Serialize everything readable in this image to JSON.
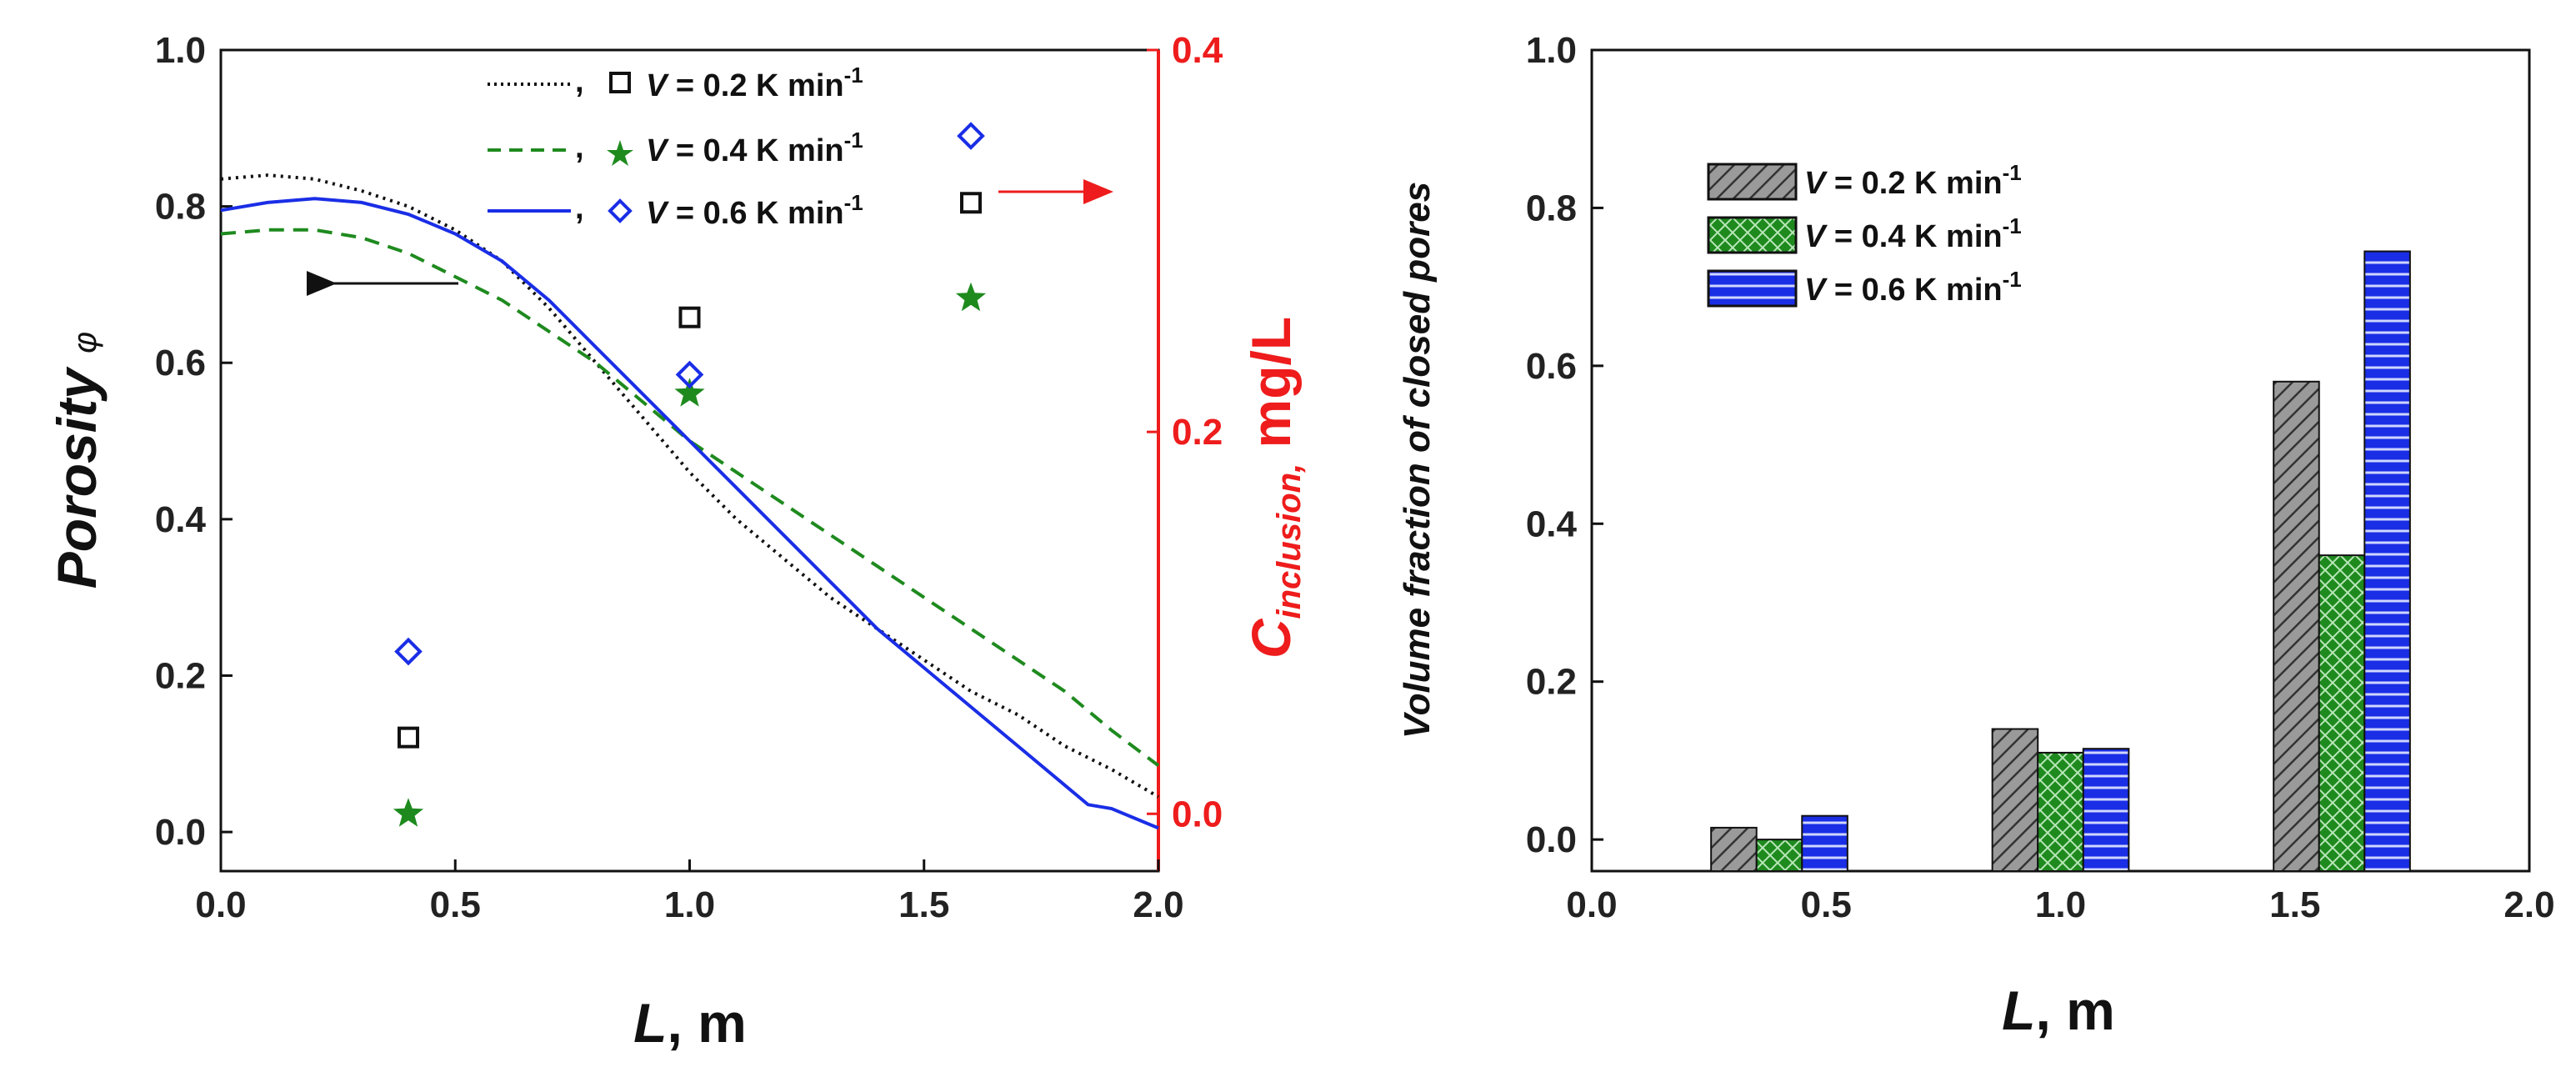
{
  "colors": {
    "black": "#111111",
    "green": "#1e8a1e",
    "blue": "#1a2ee6",
    "red": "#ee1c1c",
    "grey": "#7a7a7a"
  },
  "chart_data": [
    {
      "id": "left",
      "type": "line",
      "title": "",
      "xlabel": {
        "italic": "L",
        "rest": ", m"
      },
      "ylabel": {
        "italic": "Porosity ",
        "symbol": "φ"
      },
      "ylabel_right": {
        "base": "C",
        "sub": "inclusion,",
        "rest": " mg/L"
      },
      "xlim": [
        0.0,
        2.0
      ],
      "ylim": [
        -0.05,
        1.0
      ],
      "ylim_right": [
        -0.03,
        0.4
      ],
      "xticks": [
        "0.0",
        "0.5",
        "1.0",
        "1.5",
        "2.0"
      ],
      "yticks": [
        "0.0",
        "0.2",
        "0.4",
        "0.6",
        "0.8",
        "1.0"
      ],
      "yticks_right": [
        "0.0",
        "0.2",
        "0.4"
      ],
      "legend": [
        {
          "name": "V",
          "label": " = 0.2 K min",
          "sup": "-1",
          "line": "dotted",
          "marker": "square"
        },
        {
          "name": "V",
          "label": " = 0.4 K min",
          "sup": "-1",
          "line": "dashed",
          "marker": "star"
        },
        {
          "name": "V",
          "label": " = 0.6 K min",
          "sup": "-1",
          "line": "solid",
          "marker": "diamond"
        }
      ],
      "legend_separator": ",",
      "series": [
        {
          "name": "V = 0.2 K min-1",
          "line_style": "dotted",
          "marker": "square",
          "x": [
            0.0,
            0.1,
            0.2,
            0.3,
            0.4,
            0.5,
            0.6,
            0.7,
            0.8,
            0.9,
            1.0,
            1.1,
            1.2,
            1.3,
            1.4,
            1.5,
            1.6,
            1.7,
            1.8,
            1.9,
            2.0
          ],
          "y": [
            0.835,
            0.84,
            0.835,
            0.82,
            0.8,
            0.77,
            0.73,
            0.67,
            0.6,
            0.53,
            0.46,
            0.4,
            0.35,
            0.3,
            0.26,
            0.22,
            0.18,
            0.15,
            0.11,
            0.08,
            0.045
          ],
          "markers_x": [
            0.4,
            1.0,
            1.6
          ],
          "markers_c": [
            0.04,
            0.26,
            0.32
          ]
        },
        {
          "name": "V = 0.4 K min-1",
          "line_style": "dashed",
          "marker": "star",
          "x": [
            0.0,
            0.1,
            0.2,
            0.3,
            0.4,
            0.5,
            0.6,
            0.7,
            0.8,
            0.9,
            1.0,
            1.1,
            1.2,
            1.3,
            1.4,
            1.5,
            1.6,
            1.7,
            1.8,
            1.9,
            2.0
          ],
          "y": [
            0.765,
            0.77,
            0.77,
            0.76,
            0.74,
            0.71,
            0.68,
            0.64,
            0.6,
            0.55,
            0.5,
            0.46,
            0.42,
            0.38,
            0.34,
            0.3,
            0.26,
            0.22,
            0.18,
            0.13,
            0.085
          ],
          "markers_x": [
            0.4,
            1.0,
            1.6
          ],
          "markers_c": [
            0.0,
            0.22,
            0.27
          ]
        },
        {
          "name": "V = 0.6 K min-1",
          "line_style": "solid",
          "marker": "diamond",
          "x": [
            0.0,
            0.1,
            0.2,
            0.3,
            0.4,
            0.5,
            0.6,
            0.7,
            0.8,
            0.9,
            1.0,
            1.1,
            1.2,
            1.3,
            1.4,
            1.5,
            1.6,
            1.7,
            1.8,
            1.85,
            1.9,
            2.0
          ],
          "y": [
            0.795,
            0.805,
            0.81,
            0.805,
            0.79,
            0.765,
            0.73,
            0.68,
            0.62,
            0.56,
            0.5,
            0.44,
            0.38,
            0.32,
            0.26,
            0.21,
            0.16,
            0.11,
            0.06,
            0.035,
            0.03,
            0.005
          ],
          "markers_x": [
            0.4,
            1.0,
            1.6
          ],
          "markers_c": [
            0.085,
            0.23,
            0.355
          ]
        }
      ],
      "annotations": [
        {
          "type": "arrow",
          "direction": "left",
          "target_axis": "left"
        },
        {
          "type": "arrow",
          "direction": "right",
          "target_axis": "right"
        }
      ]
    },
    {
      "id": "right",
      "type": "bar",
      "title": "",
      "xlabel": {
        "italic": "L",
        "rest": ", m"
      },
      "ylabel": "Volume fraction of closed pores",
      "xlim": [
        0.0,
        2.0
      ],
      "ylim": [
        -0.04,
        1.0
      ],
      "xticks": [
        "0.0",
        "0.5",
        "1.0",
        "1.5",
        "2.0"
      ],
      "yticks": [
        "0.0",
        "0.2",
        "0.4",
        "0.6",
        "0.8",
        "1.0"
      ],
      "categories": [
        0.4,
        1.0,
        1.6
      ],
      "bar_width": 0.097,
      "legend": [
        {
          "name": "V",
          "label": " = 0.2 K min",
          "sup": "-1",
          "pattern": "diagonal"
        },
        {
          "name": "V",
          "label": " = 0.4 K min",
          "sup": "-1",
          "pattern": "crosshatch"
        },
        {
          "name": "V",
          "label": " = 0.6 K min",
          "sup": "-1",
          "pattern": "horizontal"
        }
      ],
      "series": [
        {
          "name": "V = 0.2 K min-1",
          "pattern": "diagonal",
          "values": [
            0.015,
            0.14,
            0.58
          ]
        },
        {
          "name": "V = 0.4 K min-1",
          "pattern": "crosshatch",
          "values": [
            0.0,
            0.11,
            0.36
          ]
        },
        {
          "name": "V = 0.6 K min-1",
          "pattern": "horizontal",
          "values": [
            0.03,
            0.115,
            0.745
          ]
        }
      ]
    }
  ]
}
